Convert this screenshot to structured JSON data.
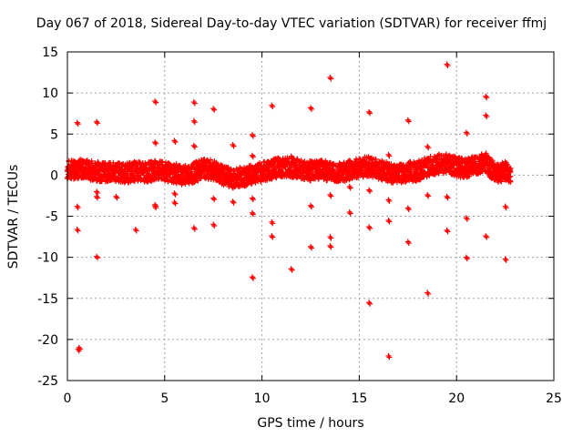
{
  "chart_data": {
    "type": "scatter",
    "title": "Day 067 of 2018, Sidereal Day-to-day VTEC variation (SDTVAR) for receiver ffmj",
    "xlabel": "GPS time / hours",
    "ylabel": "SDTVAR / TECUs",
    "xlim": [
      0,
      25
    ],
    "ylim": [
      -25,
      15
    ],
    "xticks": [
      0,
      5,
      10,
      15,
      20,
      25
    ],
    "yticks": [
      -25,
      -20,
      -15,
      -10,
      -5,
      0,
      5,
      10,
      15
    ],
    "grid": true,
    "marker": "+",
    "color": "#ff0000",
    "series": [
      {
        "name": "SDTVAR",
        "x": [
          0.5,
          0.5,
          0.5,
          0.55,
          0.6,
          1.5,
          1.5,
          1.5,
          1.5,
          2.5,
          3.5,
          4.5,
          4.5,
          4.5,
          4.5,
          5.5,
          5.5,
          5.5,
          6.5,
          6.5,
          6.5,
          6.5,
          7.5,
          7.5,
          7.5,
          8.5,
          8.5,
          9.5,
          9.5,
          9.5,
          9.5,
          9.5,
          10.5,
          10.5,
          10.5,
          10.5,
          11.5,
          11.5,
          12.5,
          12.5,
          12.5,
          13.5,
          13.5,
          13.5,
          13.5,
          14.5,
          14.5,
          15.5,
          15.5,
          15.5,
          15.5,
          16.5,
          16.5,
          16.5,
          16.5,
          17.5,
          17.5,
          17.5,
          18.5,
          18.5,
          18.5,
          19.5,
          19.5,
          19.5,
          20.5,
          20.5,
          20.5,
          21.5,
          21.5,
          21.5,
          22.5,
          22.5
        ],
        "y": [
          6.4,
          -3.8,
          -6.6,
          -21.2,
          -21.0,
          6.5,
          -2.0,
          -2.6,
          -9.9,
          -2.6,
          -6.6,
          9.0,
          4.0,
          -3.6,
          -3.8,
          4.2,
          -2.2,
          -3.3,
          8.9,
          6.6,
          3.6,
          -6.4,
          8.1,
          -2.8,
          -6.0,
          3.7,
          -3.2,
          4.9,
          2.4,
          -2.8,
          -4.6,
          -12.4,
          8.5,
          1.7,
          -5.7,
          -7.4,
          2.3,
          -11.4,
          8.2,
          -3.7,
          -8.7,
          11.9,
          -2.4,
          -7.5,
          -8.6,
          -1.4,
          -4.5,
          7.7,
          -1.8,
          -6.3,
          -15.5,
          2.5,
          -3.0,
          -5.5,
          -22.0,
          6.7,
          -4.0,
          -8.1,
          3.5,
          -2.4,
          -14.3,
          13.5,
          -2.6,
          -6.7,
          5.2,
          -5.2,
          -10.0,
          9.6,
          7.3,
          -7.4,
          -3.8,
          -10.2
        ],
        "band": {
          "x": [
            0.0,
            0.5,
            1.0,
            1.5,
            2.0,
            2.5,
            3.0,
            3.5,
            4.0,
            4.5,
            5.0,
            5.5,
            6.0,
            6.5,
            7.0,
            7.5,
            8.0,
            8.5,
            9.0,
            9.5,
            10.0,
            10.5,
            11.0,
            11.5,
            12.0,
            12.5,
            13.0,
            13.5,
            14.0,
            14.5,
            15.0,
            15.5,
            16.0,
            16.5,
            17.0,
            17.5,
            18.0,
            18.5,
            19.0,
            19.5,
            20.0,
            20.5,
            21.0,
            21.5,
            22.0,
            22.5,
            22.8
          ],
          "y": [
            0.6,
            0.8,
            0.7,
            0.5,
            0.3,
            0.4,
            0.2,
            0.5,
            0.3,
            0.6,
            0.4,
            0.2,
            0.0,
            0.3,
            0.8,
            0.6,
            0.0,
            -0.4,
            -0.2,
            0.1,
            0.4,
            0.7,
            1.0,
            0.9,
            0.7,
            0.5,
            0.6,
            0.5,
            0.4,
            0.6,
            0.9,
            1.1,
            0.7,
            0.3,
            0.1,
            0.4,
            0.5,
            1.0,
            1.3,
            1.4,
            1.0,
            0.8,
            1.2,
            1.5,
            0.2,
            0.5,
            0.3
          ]
        }
      }
    ]
  }
}
